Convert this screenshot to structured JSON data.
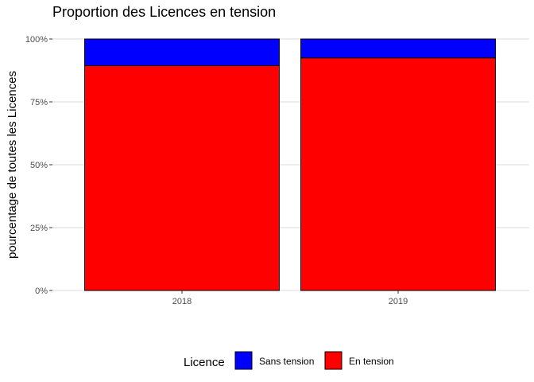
{
  "chart_data": {
    "type": "bar",
    "stacked": true,
    "title": "Proportion des Licences en tension",
    "xlabel": "",
    "ylabel": "pourcentage de toutes les Licences",
    "categories": [
      "2018",
      "2019"
    ],
    "ylim": [
      0,
      1
    ],
    "yticks": [
      0,
      0.25,
      0.5,
      0.75,
      1
    ],
    "ytick_labels": [
      "0%",
      "25%",
      "50%",
      "75%",
      "100%"
    ],
    "grid": true,
    "legend_position": "bottom",
    "legend_title": "Licence",
    "series": [
      {
        "name": "En tension",
        "color": "#ff0000",
        "values": [
          0.894,
          0.925
        ]
      },
      {
        "name": "Sans tension",
        "color": "#0000ff",
        "values": [
          0.106,
          0.075
        ]
      }
    ],
    "legend_order": [
      "Sans tension",
      "En tension"
    ]
  }
}
